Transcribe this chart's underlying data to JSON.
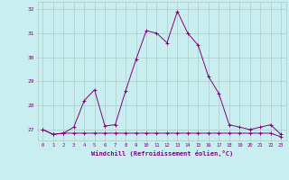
{
  "hours": [
    0,
    1,
    2,
    3,
    4,
    5,
    6,
    7,
    8,
    9,
    10,
    11,
    12,
    13,
    14,
    15,
    16,
    17,
    18,
    19,
    20,
    21,
    22,
    23
  ],
  "line1": [
    27.0,
    26.8,
    26.85,
    26.85,
    26.85,
    26.85,
    26.85,
    26.85,
    26.85,
    26.85,
    26.85,
    26.85,
    26.85,
    26.85,
    26.85,
    26.85,
    26.85,
    26.85,
    26.85,
    26.85,
    26.85,
    26.85,
    26.85,
    26.7
  ],
  "line2": [
    27.0,
    26.8,
    26.85,
    27.1,
    28.2,
    28.65,
    27.15,
    27.2,
    28.6,
    29.9,
    31.1,
    31.0,
    30.6,
    31.9,
    31.0,
    30.5,
    29.2,
    28.5,
    27.2,
    27.1,
    27.0,
    27.1,
    27.2,
    26.8
  ],
  "line_color": "#800080",
  "bg_color": "#c8eef0",
  "grid_color": "#b0c8c8",
  "axis_color": "#800080",
  "xlabel": "Windchill (Refroidissement éolien,°C)",
  "ylim_min": 26.55,
  "ylim_max": 32.3,
  "yticks": [
    27,
    28,
    29,
    30,
    31,
    32
  ],
  "xticks": [
    0,
    1,
    2,
    3,
    4,
    5,
    6,
    7,
    8,
    9,
    10,
    11,
    12,
    13,
    14,
    15,
    16,
    17,
    18,
    19,
    20,
    21,
    22,
    23
  ]
}
